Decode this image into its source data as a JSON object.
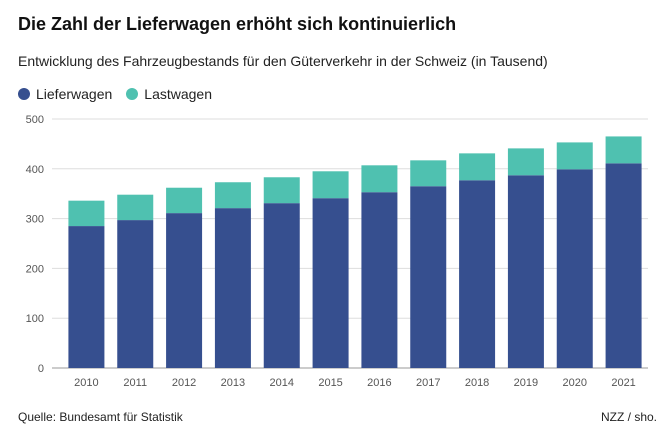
{
  "title": "Die Zahl der Lieferwagen erhöht sich kontinuierlich",
  "subtitle": "Entwicklung des Fahrzeugbestands für den Güterverkehr in der Schweiz (in Tausend)",
  "source": "Quelle: Bundesamt für Statistik",
  "credit": "NZZ / sho.",
  "colors": {
    "lieferwagen": "#364f8f",
    "lastwagen": "#4fc1b0",
    "grid": "#dddddd"
  },
  "chart_data": {
    "type": "bar",
    "stacked": true,
    "categories": [
      "2010",
      "2011",
      "2012",
      "2013",
      "2014",
      "2015",
      "2016",
      "2017",
      "2018",
      "2019",
      "2020",
      "2021"
    ],
    "series": [
      {
        "name": "Lieferwagen",
        "values": [
          285,
          297,
          311,
          321,
          331,
          341,
          353,
          365,
          377,
          387,
          399,
          411
        ]
      },
      {
        "name": "Lastwagen",
        "values": [
          51,
          51,
          51,
          52,
          52,
          54,
          54,
          52,
          54,
          54,
          54,
          54
        ]
      }
    ],
    "ylim": [
      0,
      500
    ],
    "yticks": [
      0,
      100,
      200,
      300,
      400,
      500
    ],
    "grid": true,
    "legend": "top-left"
  }
}
